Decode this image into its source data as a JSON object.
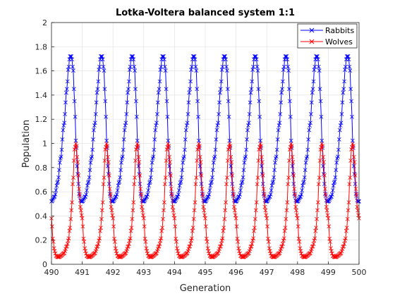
{
  "chart_data": {
    "type": "line",
    "title": "Lotka-Voltera balanced system 1:1",
    "xlabel": "Generation",
    "ylabel": "Population",
    "xlim": [
      490,
      500
    ],
    "ylim": [
      0,
      2
    ],
    "xticks": [
      "490",
      "491",
      "492",
      "493",
      "494",
      "495",
      "496",
      "497",
      "498",
      "499",
      "500"
    ],
    "yticks": [
      "0",
      "0.2",
      "0.4",
      "0.6",
      "0.8",
      "1",
      "1.2",
      "1.4",
      "1.6",
      "1.8",
      "2"
    ],
    "grid": true,
    "legend_position": "top-right",
    "marker": "x",
    "period": 1.0,
    "series": [
      {
        "name": "Rabbits",
        "color": "#0000ff",
        "phase_x": [
          0.0,
          0.1,
          0.2,
          0.3,
          0.4,
          0.5,
          0.55,
          0.6,
          0.65,
          0.7,
          0.75,
          0.8,
          0.85,
          0.9,
          0.95,
          1.0
        ],
        "phase_y": [
          0.52,
          0.56,
          0.68,
          0.88,
          1.15,
          1.45,
          1.62,
          1.72,
          1.72,
          1.62,
          1.35,
          1.0,
          0.75,
          0.58,
          0.52,
          0.52
        ]
      },
      {
        "name": "Wolves",
        "color": "#ff0000",
        "phase_x": [
          0.0,
          0.05,
          0.1,
          0.15,
          0.2,
          0.25,
          0.3,
          0.4,
          0.5,
          0.55,
          0.6,
          0.65,
          0.7,
          0.75,
          0.8,
          0.85,
          0.9,
          0.95,
          1.0
        ],
        "phase_y": [
          0.38,
          0.2,
          0.11,
          0.07,
          0.06,
          0.06,
          0.07,
          0.09,
          0.15,
          0.2,
          0.3,
          0.45,
          0.7,
          0.95,
          1.0,
          0.85,
          0.62,
          0.45,
          0.38
        ]
      }
    ]
  }
}
